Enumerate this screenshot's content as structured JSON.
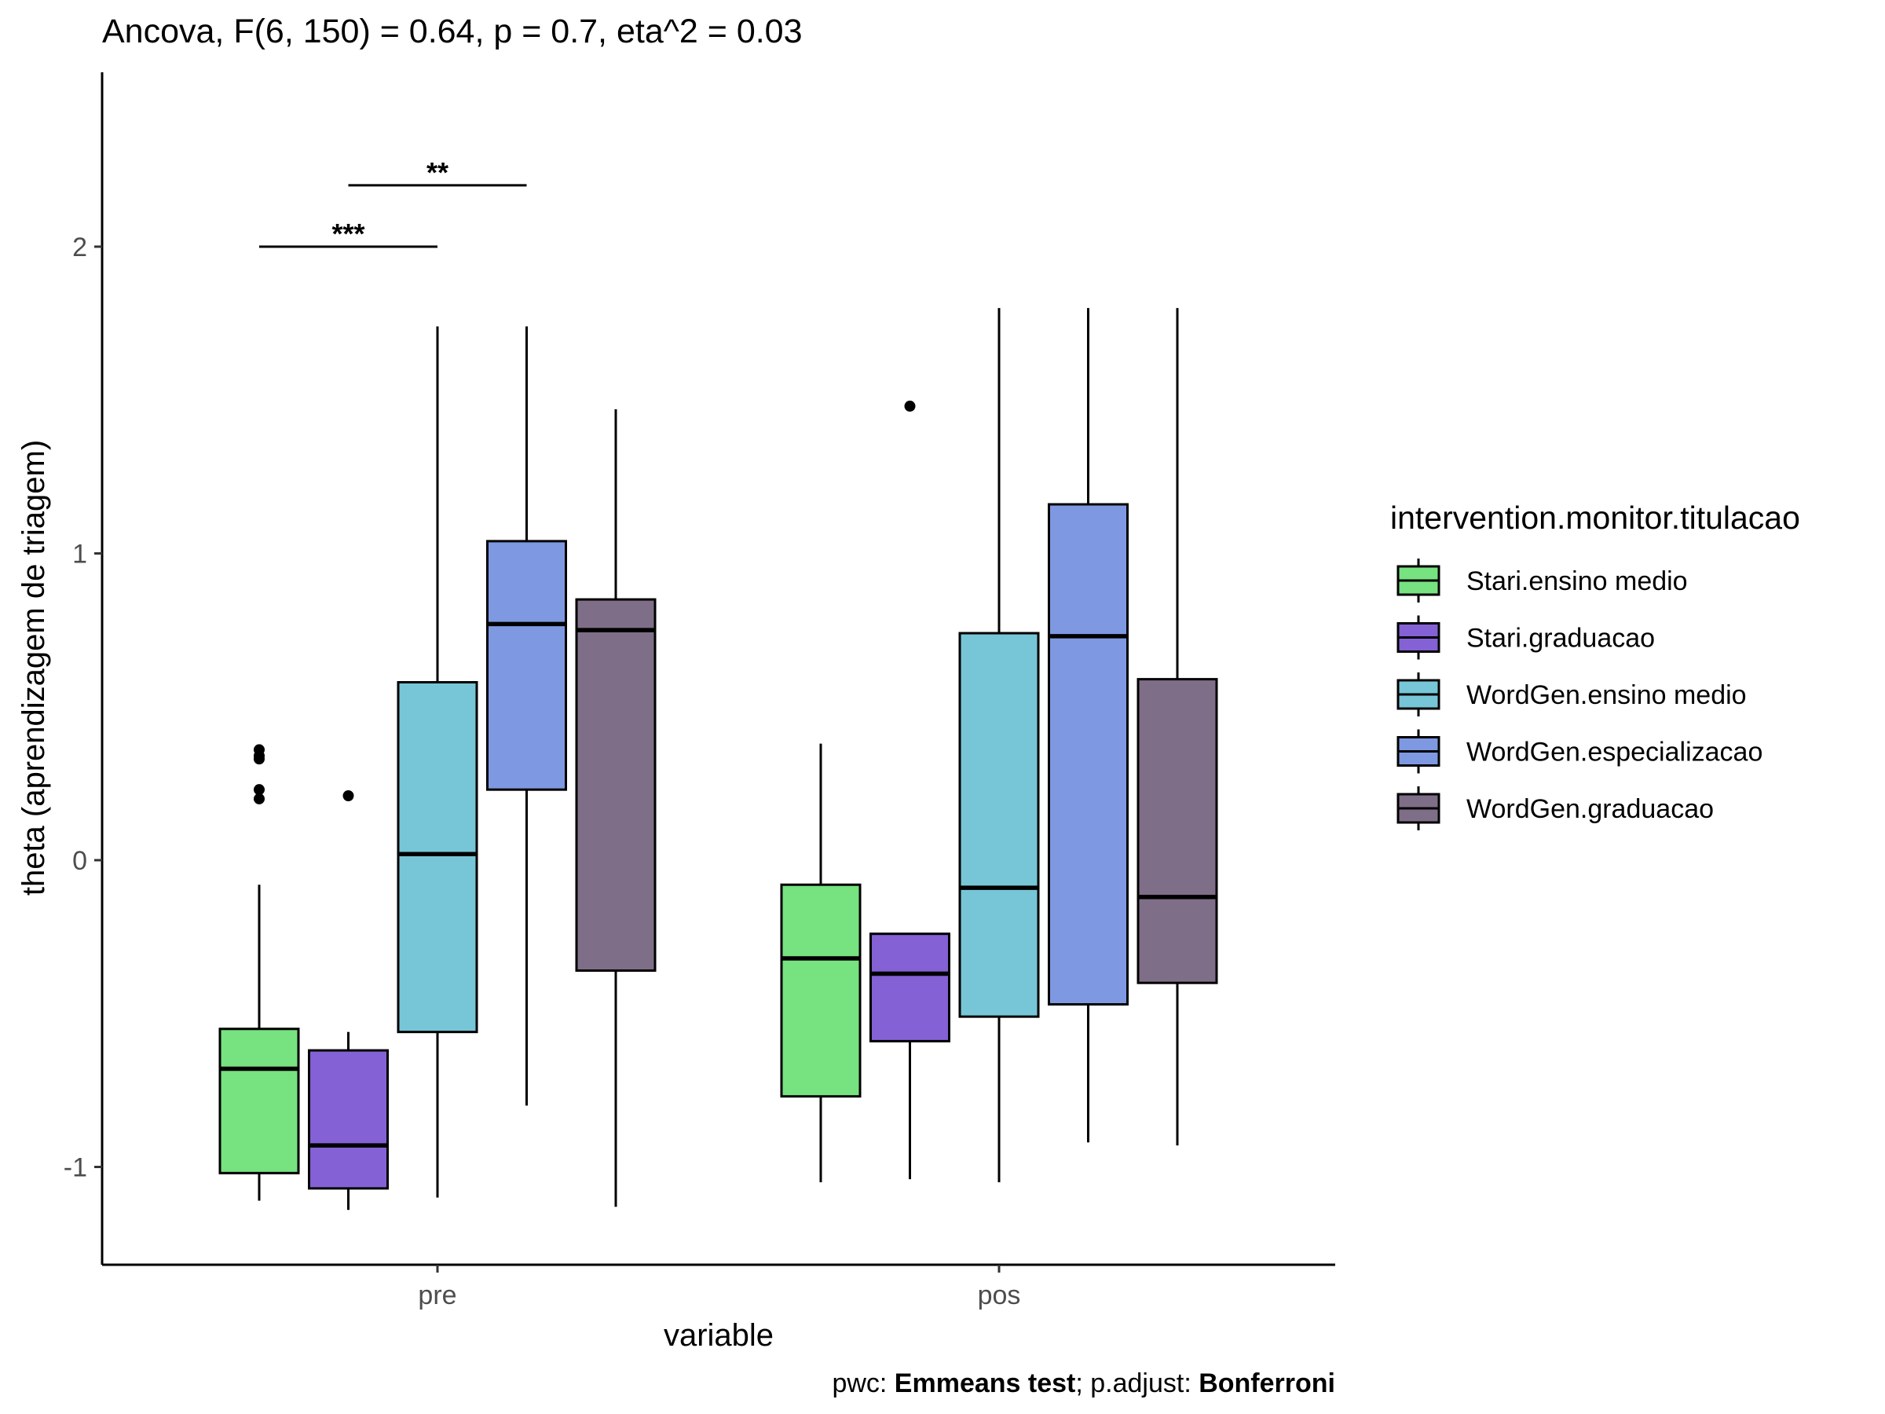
{
  "chart_data": {
    "type": "boxplot",
    "title": "Ancova, F(6, 150) = 0.64, p = 0.7, eta^2 = 0.03",
    "xlabel": "variable",
    "ylabel": "theta (aprendizagem de triagem)",
    "caption": {
      "prefix": "pwc: ",
      "test": "Emmeans test",
      "mid": "; p.adjust: ",
      "method": "Bonferroni"
    },
    "categories": [
      "pre",
      "pos"
    ],
    "ylim": [
      -1.32,
      2.6
    ],
    "yticks": [
      -1,
      0,
      1,
      2
    ],
    "legend": {
      "title": "intervention.monitor.titulacao",
      "position": "right"
    },
    "series": [
      {
        "name": "Stari.ensino medio",
        "color": "#77e280",
        "boxes": [
          {
            "category": "pre",
            "lower_whisker": -1.11,
            "q1": -1.02,
            "median": -0.68,
            "q3": -0.55,
            "upper_whisker": -0.08,
            "outliers": [
              0.2,
              0.23,
              0.33,
              0.34,
              0.36
            ]
          },
          {
            "category": "pos",
            "lower_whisker": -1.05,
            "q1": -0.77,
            "median": -0.32,
            "q3": -0.08,
            "upper_whisker": 0.38,
            "outliers": []
          }
        ]
      },
      {
        "name": "Stari.graduacao",
        "color": "#8461d4",
        "boxes": [
          {
            "category": "pre",
            "lower_whisker": -1.14,
            "q1": -1.07,
            "median": -0.93,
            "q3": -0.62,
            "upper_whisker": -0.56,
            "outliers": [
              0.21
            ]
          },
          {
            "category": "pos",
            "lower_whisker": -1.04,
            "q1": -0.59,
            "median": -0.37,
            "q3": -0.24,
            "upper_whisker": -0.24,
            "outliers": [
              1.48
            ]
          }
        ]
      },
      {
        "name": "WordGen.ensino medio",
        "color": "#77c6d7",
        "boxes": [
          {
            "category": "pre",
            "lower_whisker": -1.1,
            "q1": -0.56,
            "median": 0.02,
            "q3": 0.58,
            "upper_whisker": 1.74,
            "outliers": []
          },
          {
            "category": "pos",
            "lower_whisker": -1.05,
            "q1": -0.51,
            "median": -0.09,
            "q3": 0.74,
            "upper_whisker": 1.8,
            "outliers": []
          }
        ]
      },
      {
        "name": "WordGen.especializacao",
        "color": "#7e99e1",
        "boxes": [
          {
            "category": "pre",
            "lower_whisker": -0.8,
            "q1": 0.23,
            "median": 0.77,
            "q3": 1.04,
            "upper_whisker": 1.74,
            "outliers": []
          },
          {
            "category": "pos",
            "lower_whisker": -0.92,
            "q1": -0.47,
            "median": 0.73,
            "q3": 1.16,
            "upper_whisker": 1.8,
            "outliers": []
          }
        ]
      },
      {
        "name": "WordGen.graduacao",
        "color": "#7e6e87",
        "boxes": [
          {
            "category": "pre",
            "lower_whisker": -1.13,
            "q1": -0.36,
            "median": 0.75,
            "q3": 0.85,
            "upper_whisker": 1.47,
            "outliers": []
          },
          {
            "category": "pos",
            "lower_whisker": -0.93,
            "q1": -0.4,
            "median": -0.12,
            "q3": 0.59,
            "upper_whisker": 1.8,
            "outliers": []
          }
        ]
      }
    ],
    "significance": [
      {
        "category": "pre",
        "from_series": 0,
        "to_series": 2,
        "y": 2.0,
        "label": "***"
      },
      {
        "category": "pre",
        "from_series": 1,
        "to_series": 3,
        "y": 2.2,
        "label": "**"
      }
    ]
  }
}
